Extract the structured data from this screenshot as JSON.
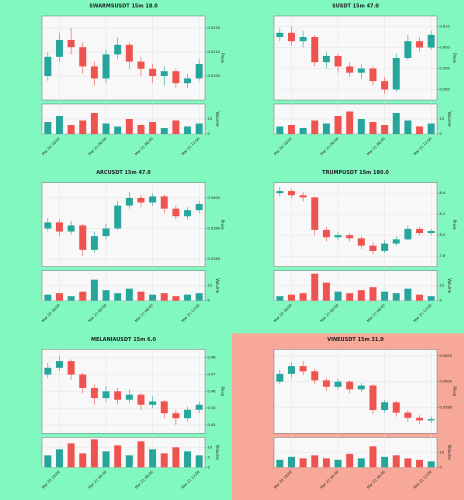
{
  "chart_data": [
    {
      "type": "candlestick",
      "title": "SWARMSUSDT 15m 18.0",
      "ylabel": "Price",
      "vlabel": "Volume",
      "background": "#80f8c0",
      "up_color": "#26a69a",
      "down_color": "#ef5350",
      "grid": true,
      "categories": [
        null,
        "Mar 20 18:00",
        null,
        null,
        null,
        "Mar 21 00:00",
        null,
        null,
        null,
        "Mar 21 06:00",
        null,
        null,
        null,
        "Mar 21 12:00"
      ],
      "open": [
        0.02,
        0.0208,
        0.0215,
        0.0212,
        0.0204,
        0.0199,
        0.0209,
        0.0213,
        0.0206,
        0.0203,
        0.02,
        0.0202,
        0.0197,
        0.0199
      ],
      "high": [
        0.021,
        0.0218,
        0.022,
        0.0214,
        0.0206,
        0.0211,
        0.0216,
        0.0214,
        0.0208,
        0.0205,
        0.0204,
        0.0203,
        0.0201,
        0.0207
      ],
      "low": [
        0.0198,
        0.0206,
        0.0209,
        0.0201,
        0.0196,
        0.0197,
        0.0207,
        0.0203,
        0.02,
        0.0197,
        0.0196,
        0.0195,
        0.0195,
        0.0198
      ],
      "close": [
        0.0208,
        0.0215,
        0.0212,
        0.0204,
        0.0199,
        0.0209,
        0.0213,
        0.0206,
        0.0203,
        0.02,
        0.0202,
        0.0197,
        0.0199,
        0.0205
      ],
      "volume": [
        8,
        12,
        6,
        9,
        14,
        7,
        5,
        10,
        6,
        8,
        4,
        9,
        5,
        7
      ],
      "ylim": [
        0.019,
        0.0225
      ],
      "yticks": [
        {
          "value": 0.02,
          "label": "0.0200"
        },
        {
          "value": 0.021,
          "label": "0.0210"
        },
        {
          "value": 0.022,
          "label": "0.0220"
        }
      ],
      "vlim": [
        0,
        20
      ],
      "vticks": [
        0,
        10
      ]
    },
    {
      "type": "candlestick",
      "title": "SUSDT 15m 47.0",
      "ylabel": "Price",
      "vlabel": "Volume",
      "background": "#80f8c0",
      "up_color": "#26a69a",
      "down_color": "#ef5350",
      "grid": true,
      "categories": [
        null,
        "Mar 20 18:00",
        null,
        null,
        null,
        "Mar 21 00:00",
        null,
        null,
        null,
        "Mar 21 06:00",
        null,
        null,
        null,
        "Mar 21 12:00"
      ],
      "open": [
        0.605,
        0.607,
        0.603,
        0.605,
        0.593,
        0.596,
        0.591,
        0.588,
        0.59,
        0.584,
        0.58,
        0.595,
        0.603,
        0.6
      ],
      "high": [
        0.609,
        0.61,
        0.608,
        0.606,
        0.598,
        0.597,
        0.593,
        0.592,
        0.591,
        0.586,
        0.597,
        0.606,
        0.605,
        0.608
      ],
      "low": [
        0.603,
        0.601,
        0.6,
        0.591,
        0.59,
        0.588,
        0.586,
        0.585,
        0.582,
        0.578,
        0.579,
        0.594,
        0.598,
        0.599
      ],
      "close": [
        0.607,
        0.603,
        0.605,
        0.593,
        0.596,
        0.591,
        0.588,
        0.59,
        0.584,
        0.58,
        0.595,
        0.603,
        0.6,
        0.606
      ],
      "volume": [
        5,
        6,
        4,
        9,
        7,
        12,
        15,
        10,
        8,
        6,
        14,
        9,
        5,
        7
      ],
      "ylim": [
        0.575,
        0.615
      ],
      "yticks": [
        {
          "value": 0.58,
          "label": "0.580"
        },
        {
          "value": 0.59,
          "label": "0.590"
        },
        {
          "value": 0.6,
          "label": "0.600"
        },
        {
          "value": 0.61,
          "label": "0.610"
        }
      ],
      "vlim": [
        0,
        20
      ],
      "vticks": [
        0,
        10
      ]
    },
    {
      "type": "candlestick",
      "title": "ARCUSDT 15m 47.0",
      "ylabel": "Price",
      "vlabel": "Volume",
      "background": "#80f8c0",
      "up_color": "#26a69a",
      "down_color": "#ef5350",
      "grid": true,
      "categories": [
        null,
        "Mar 20 18:00",
        null,
        null,
        null,
        "Mar 21 00:00",
        null,
        null,
        null,
        "Mar 21 06:00",
        null,
        null,
        null,
        "Mar 21 12:00"
      ],
      "open": [
        0.038,
        0.0384,
        0.0378,
        0.0382,
        0.0366,
        0.0375,
        0.038,
        0.0395,
        0.04,
        0.0397,
        0.0401,
        0.0393,
        0.0388,
        0.0392
      ],
      "high": [
        0.0387,
        0.0386,
        0.0385,
        0.0383,
        0.0378,
        0.0383,
        0.0398,
        0.0404,
        0.0402,
        0.0403,
        0.0402,
        0.0395,
        0.0394,
        0.0398
      ],
      "low": [
        0.0378,
        0.0375,
        0.0376,
        0.0362,
        0.0364,
        0.0373,
        0.0379,
        0.0393,
        0.0394,
        0.0395,
        0.039,
        0.0386,
        0.0386,
        0.039
      ],
      "close": [
        0.0384,
        0.0378,
        0.0382,
        0.0366,
        0.0375,
        0.038,
        0.0395,
        0.04,
        0.0397,
        0.0401,
        0.0393,
        0.0388,
        0.0392,
        0.0396
      ],
      "volume": [
        4,
        5,
        3,
        6,
        14,
        7,
        5,
        8,
        6,
        4,
        5,
        3,
        4,
        5
      ],
      "ylim": [
        0.0355,
        0.041
      ],
      "yticks": [
        {
          "value": 0.036,
          "label": "0.0360"
        },
        {
          "value": 0.038,
          "label": "0.0380"
        },
        {
          "value": 0.04,
          "label": "0.0400"
        }
      ],
      "vlim": [
        0,
        20
      ],
      "vticks": [
        0,
        10
      ]
    },
    {
      "type": "candlestick",
      "title": "TRUMPUSDT 15m 180.0",
      "ylabel": "Price",
      "vlabel": "Volume",
      "background": "#80f8c0",
      "up_color": "#26a69a",
      "down_color": "#ef5350",
      "grid": true,
      "categories": [
        null,
        "Mar 20 18:00",
        null,
        null,
        null,
        "Mar 21 00:00",
        null,
        null,
        null,
        "Mar 21 06:00",
        null,
        null,
        null,
        "Mar 21 12:00"
      ],
      "open": [
        8.4,
        8.42,
        8.38,
        8.36,
        8.05,
        7.98,
        8.0,
        7.97,
        7.9,
        7.85,
        7.92,
        7.96,
        8.06,
        8.02
      ],
      "high": [
        8.46,
        8.44,
        8.41,
        8.37,
        8.08,
        8.03,
        8.02,
        7.99,
        7.93,
        7.95,
        7.99,
        8.09,
        8.08,
        8.06
      ],
      "low": [
        8.37,
        8.35,
        8.32,
        8.0,
        7.94,
        7.95,
        7.94,
        7.87,
        7.82,
        7.83,
        7.9,
        7.95,
        8.0,
        8.0
      ],
      "close": [
        8.42,
        8.38,
        8.36,
        8.05,
        7.98,
        8.0,
        7.97,
        7.9,
        7.85,
        7.92,
        7.96,
        8.06,
        8.02,
        8.04
      ],
      "volume": [
        3,
        4,
        5,
        18,
        12,
        6,
        5,
        7,
        9,
        6,
        5,
        8,
        4,
        3
      ],
      "ylim": [
        7.7,
        8.5
      ],
      "yticks": [
        7.8,
        {
          "value": 8.0,
          "label": "8.0"
        },
        8.2,
        8.4
      ],
      "vlim": [
        0,
        20
      ],
      "vticks": [
        0,
        10
      ]
    },
    {
      "type": "candlestick",
      "title": "MELANIAUSDT 15m 6.0",
      "ylabel": "Price",
      "vlabel": "Volume",
      "background": "#80f8c0",
      "up_color": "#26a69a",
      "down_color": "#ef5350",
      "grid": true,
      "categories": [
        null,
        "Mar 20 18:00",
        null,
        null,
        null,
        "Mar 21 00:00",
        null,
        null,
        null,
        "Mar 21 06:00",
        null,
        null,
        null,
        "Mar 21 12:00"
      ],
      "open": [
        0.47,
        0.474,
        0.478,
        0.47,
        0.462,
        0.456,
        0.46,
        0.455,
        0.458,
        0.452,
        0.454,
        0.447,
        0.444,
        0.449
      ],
      "high": [
        0.477,
        0.481,
        0.479,
        0.471,
        0.464,
        0.463,
        0.462,
        0.461,
        0.459,
        0.457,
        0.455,
        0.449,
        0.451,
        0.454
      ],
      "low": [
        0.468,
        0.472,
        0.467,
        0.459,
        0.452,
        0.454,
        0.452,
        0.453,
        0.449,
        0.45,
        0.444,
        0.44,
        0.442,
        0.447
      ],
      "close": [
        0.474,
        0.478,
        0.47,
        0.462,
        0.456,
        0.46,
        0.455,
        0.458,
        0.452,
        0.454,
        0.447,
        0.444,
        0.449,
        0.452
      ],
      "volume": [
        6,
        9,
        12,
        7,
        14,
        8,
        11,
        6,
        13,
        9,
        7,
        10,
        8,
        6
      ],
      "ylim": [
        0.435,
        0.485
      ],
      "yticks": [
        0.44,
        0.45,
        0.46,
        0.47,
        0.48
      ],
      "vlim": [
        0,
        15
      ],
      "vticks": [
        0,
        5,
        10
      ]
    },
    {
      "type": "candlestick",
      "title": "VINEUSDT 15m 31.0",
      "ylabel": "Price",
      "vlabel": "Volume",
      "background": "#f8a898",
      "up_color": "#26a69a",
      "down_color": "#ef5350",
      "grid": true,
      "categories": [
        null,
        "Mar 20 18:00",
        null,
        null,
        null,
        "Mar 21 00:00",
        null,
        null,
        null,
        "Mar 21 06:00",
        null,
        null,
        null,
        "Mar 21 12:00"
      ],
      "open": [
        0.06,
        0.0606,
        0.0612,
        0.0608,
        0.0601,
        0.0596,
        0.06,
        0.0594,
        0.0597,
        0.0578,
        0.0584,
        0.0576,
        0.0572,
        0.057
      ],
      "high": [
        0.0609,
        0.0615,
        0.0616,
        0.061,
        0.0603,
        0.0602,
        0.0601,
        0.0599,
        0.0598,
        0.0586,
        0.0585,
        0.0578,
        0.0574,
        0.0573
      ],
      "low": [
        0.0598,
        0.0603,
        0.0605,
        0.0598,
        0.0593,
        0.0594,
        0.0591,
        0.0592,
        0.0575,
        0.0576,
        0.0573,
        0.0569,
        0.0567,
        0.0568
      ],
      "close": [
        0.0606,
        0.0612,
        0.0608,
        0.0601,
        0.0596,
        0.06,
        0.0594,
        0.0597,
        0.0578,
        0.0584,
        0.0576,
        0.0572,
        0.057,
        0.0571
      ],
      "volume": [
        5,
        7,
        6,
        8,
        6,
        5,
        9,
        6,
        14,
        7,
        8,
        6,
        5,
        4
      ],
      "ylim": [
        0.056,
        0.0625
      ],
      "yticks": [
        {
          "value": 0.058,
          "label": "0.0580"
        },
        {
          "value": 0.06,
          "label": "0.0600"
        },
        {
          "value": 0.062,
          "label": "0.0620"
        }
      ],
      "vlim": [
        0,
        20
      ],
      "vticks": [
        0,
        10
      ]
    }
  ]
}
